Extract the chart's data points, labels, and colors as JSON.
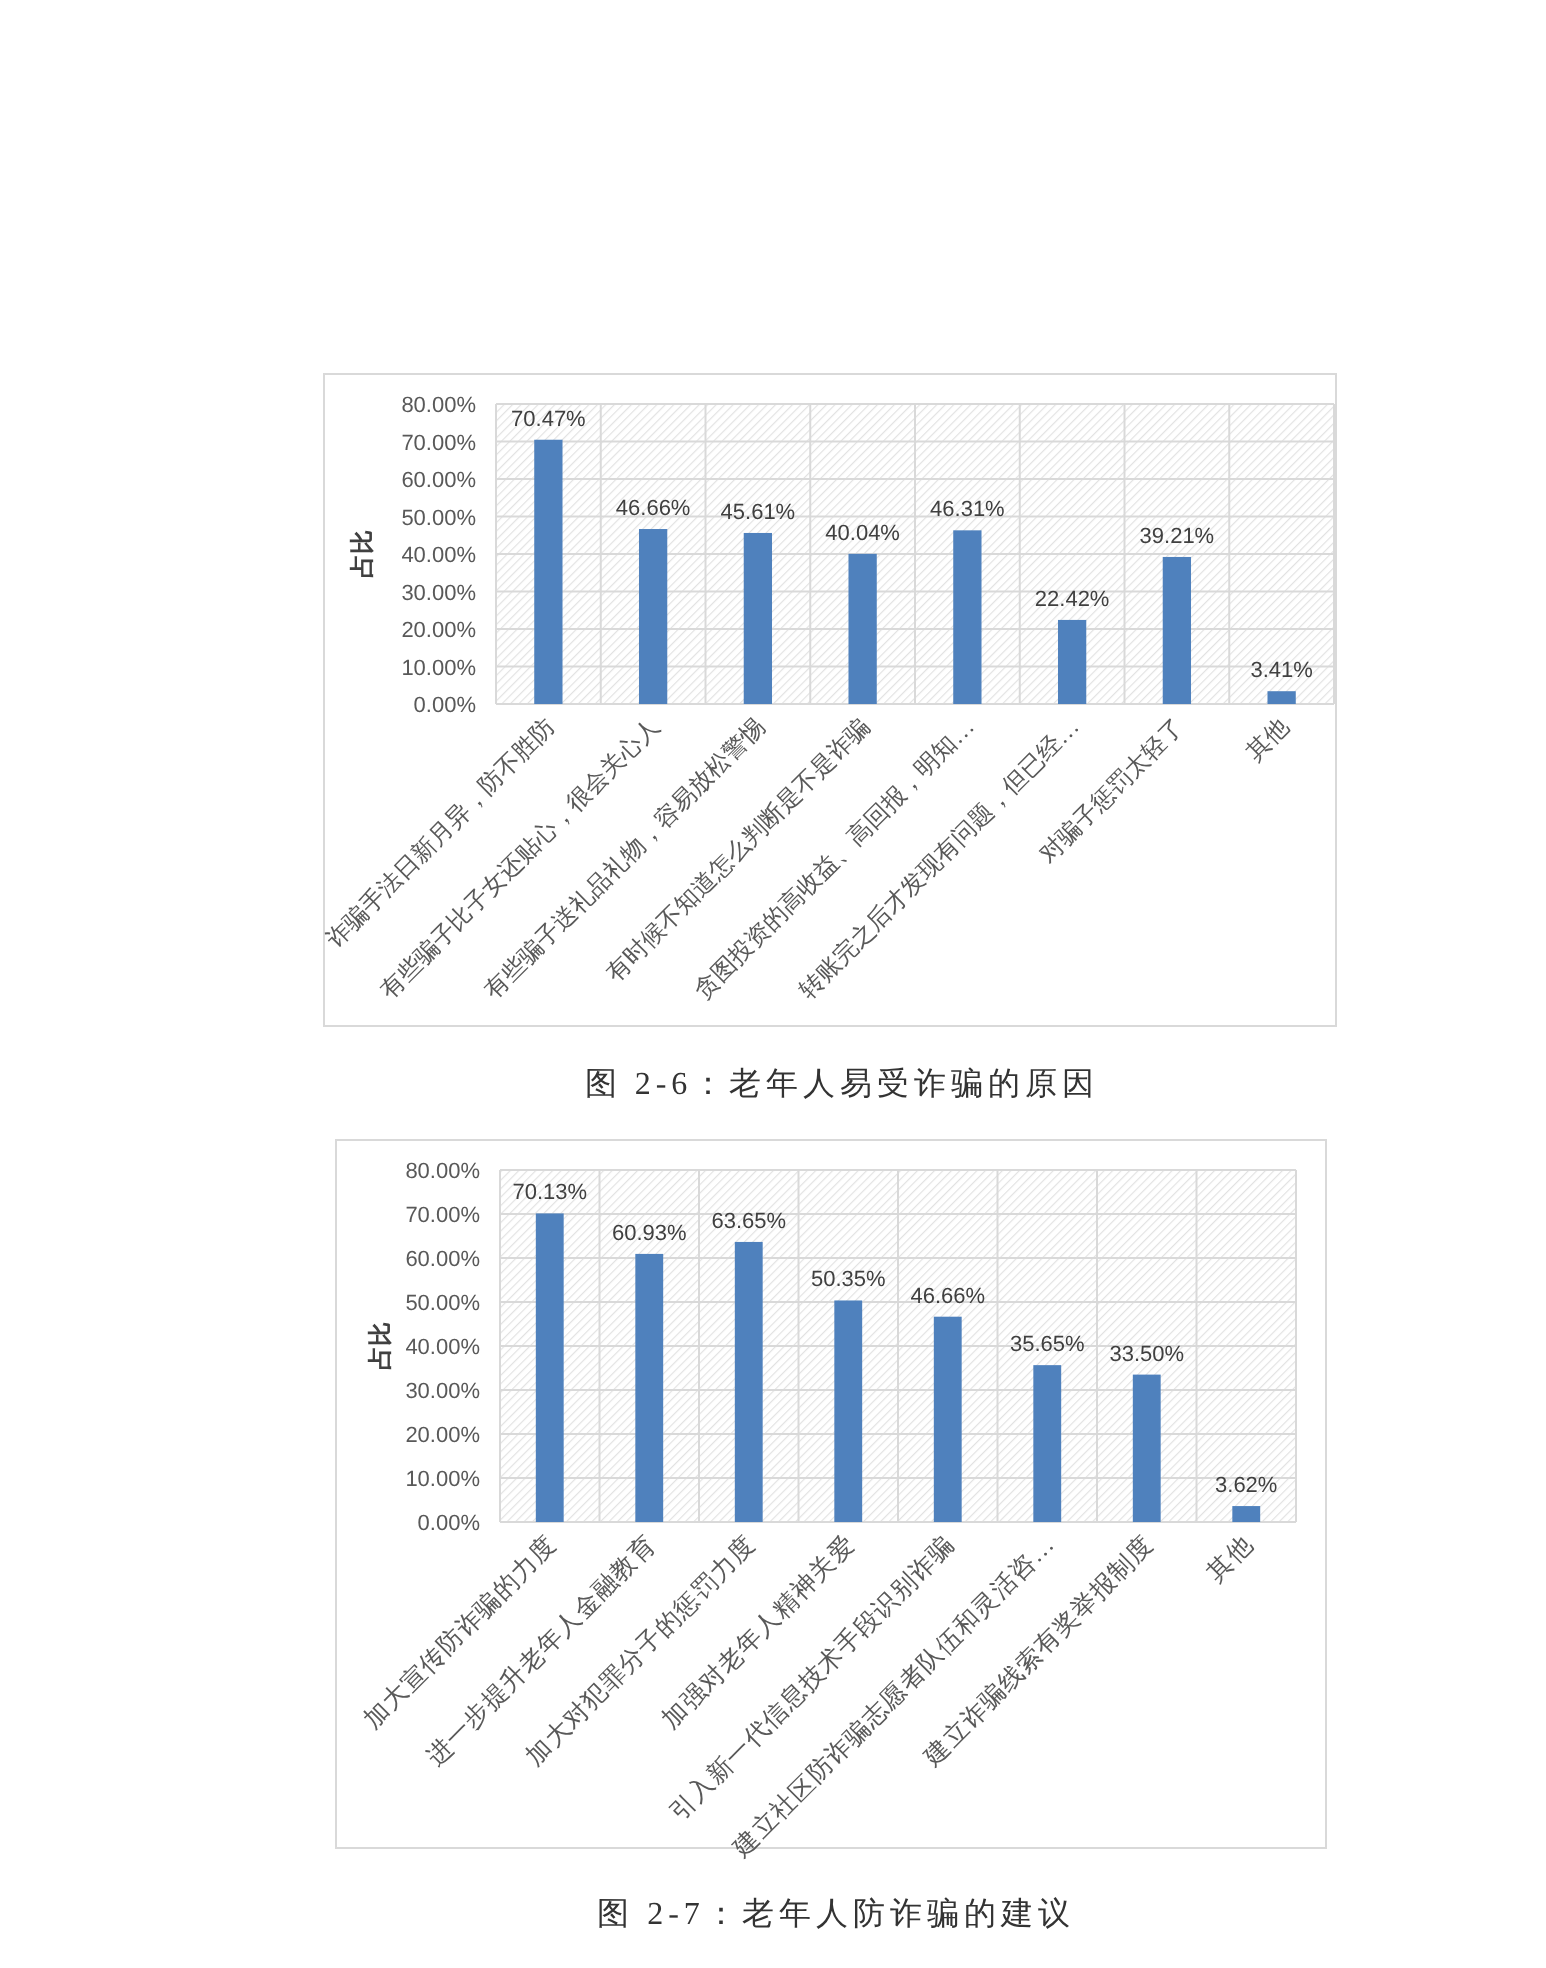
{
  "chart_data": [
    {
      "type": "bar",
      "title": "图 2-6：老年人易受诈骗的原因",
      "ylabel": "占比",
      "categories": [
        "诈骗手法日新月异，防不胜防",
        "有些骗子比子女还贴心，很会关心人",
        "有些骗子送礼品礼物，容易放松警惕",
        "有时候不知道怎么判断是不是诈骗",
        "贪图投资的高收益、高回报，明知…",
        "转账完之后才发现有问题，但已经…",
        "对骗子惩罚太轻了",
        "其他"
      ],
      "values": [
        70.47,
        46.66,
        45.61,
        40.04,
        46.31,
        22.42,
        39.21,
        3.41
      ],
      "value_labels": [
        "70.47%",
        "46.66%",
        "45.61%",
        "40.04%",
        "46.31%",
        "22.42%",
        "39.21%",
        "3.41%"
      ],
      "color": "#4f81bd",
      "ylim": [
        0,
        80
      ],
      "yticks": [
        {
          "value": 0,
          "label": "0.00%"
        },
        {
          "value": 10,
          "label": "10.00%"
        },
        {
          "value": 20,
          "label": "20.00%"
        },
        {
          "value": 30,
          "label": "30.00%"
        },
        {
          "value": 40,
          "label": "40.00%"
        },
        {
          "value": 50,
          "label": "50.00%"
        },
        {
          "value": 60,
          "label": "60.00%"
        },
        {
          "value": 70,
          "label": "70.00%"
        },
        {
          "value": 80,
          "label": "80.00%"
        }
      ],
      "grid": true
    },
    {
      "type": "bar",
      "title": "图 2-7：老年人防诈骗的建议",
      "ylabel": "占比",
      "categories": [
        "加大宣传防诈骗的力度",
        "进一步提升老年人金融教育",
        "加大对犯罪分子的惩罚力度",
        "加强对老年人精神关爱",
        "引入新一代信息技术手段识别诈骗",
        "建立社区防诈骗志愿者队伍和灵活咨…",
        "建立诈骗线索有奖举报制度",
        "其他"
      ],
      "values": [
        70.13,
        60.93,
        63.65,
        50.35,
        46.66,
        35.65,
        33.5,
        3.62
      ],
      "value_labels": [
        "70.13%",
        "60.93%",
        "63.65%",
        "50.35%",
        "46.66%",
        "35.65%",
        "33.50%",
        "3.62%"
      ],
      "color": "#4f81bd",
      "ylim": [
        0,
        80
      ],
      "yticks": [
        {
          "value": 0,
          "label": "0.00%"
        },
        {
          "value": 10,
          "label": "10.00%"
        },
        {
          "value": 20,
          "label": "20.00%"
        },
        {
          "value": 30,
          "label": "30.00%"
        },
        {
          "value": 40,
          "label": "40.00%"
        },
        {
          "value": 50,
          "label": "50.00%"
        },
        {
          "value": 60,
          "label": "60.00%"
        },
        {
          "value": 70,
          "label": "70.00%"
        },
        {
          "value": 80,
          "label": "80.00%"
        }
      ],
      "grid": true
    }
  ]
}
